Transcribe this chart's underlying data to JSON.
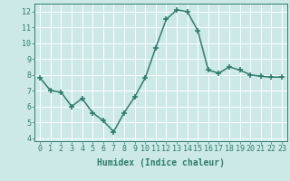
{
  "x": [
    0,
    1,
    2,
    3,
    4,
    5,
    6,
    7,
    8,
    9,
    10,
    11,
    12,
    13,
    14,
    15,
    16,
    17,
    18,
    19,
    20,
    21,
    22,
    23
  ],
  "y": [
    7.8,
    7.0,
    6.9,
    6.0,
    6.5,
    5.6,
    5.1,
    4.4,
    5.6,
    6.6,
    7.8,
    9.7,
    11.5,
    12.1,
    12.0,
    10.8,
    8.3,
    8.1,
    8.5,
    8.3,
    8.0,
    7.9,
    7.85,
    7.85
  ],
  "line_color": "#2e7d6e",
  "marker": "+",
  "marker_size": 4.0,
  "marker_lw": 1.2,
  "line_width": 1.1,
  "bg_color": "#cce9e7",
  "grid_color": "#ffffff",
  "xlabel": "Humidex (Indice chaleur)",
  "xlim": [
    -0.5,
    23.5
  ],
  "ylim": [
    3.8,
    12.5
  ],
  "yticks": [
    4,
    5,
    6,
    7,
    8,
    9,
    10,
    11,
    12
  ],
  "xtick_labels": [
    "0",
    "1",
    "2",
    "3",
    "4",
    "5",
    "6",
    "7",
    "8",
    "9",
    "10",
    "11",
    "12",
    "13",
    "14",
    "15",
    "16",
    "17",
    "18",
    "19",
    "20",
    "21",
    "22",
    "23"
  ],
  "xlabel_fontsize": 7,
  "tick_fontsize": 6,
  "tick_color": "#2e7d6e",
  "label_color": "#2e7d6e",
  "spine_color": "#2e7d6e"
}
